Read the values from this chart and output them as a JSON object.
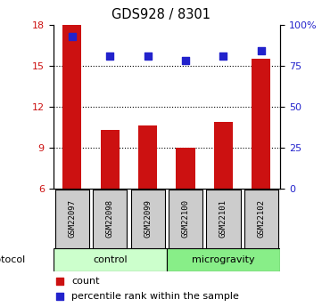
{
  "title": "GDS928 / 8301",
  "samples": [
    "GSM22097",
    "GSM22098",
    "GSM22099",
    "GSM22100",
    "GSM22101",
    "GSM22102"
  ],
  "bar_values": [
    18,
    10.3,
    10.6,
    9.0,
    10.9,
    15.5
  ],
  "percentile_values": [
    93,
    81,
    81,
    78,
    81,
    84
  ],
  "bar_bottom": 6,
  "ylim_left": [
    6,
    18
  ],
  "ylim_right": [
    0,
    100
  ],
  "yticks_left": [
    6,
    9,
    12,
    15,
    18
  ],
  "yticks_right": [
    0,
    25,
    50,
    75,
    100
  ],
  "ytick_labels_right": [
    "0",
    "25",
    "50",
    "75",
    "100%"
  ],
  "bar_color": "#cc1111",
  "dot_color": "#2222cc",
  "groups": [
    {
      "label": "control",
      "indices": [
        0,
        1,
        2
      ],
      "color": "#ccffcc"
    },
    {
      "label": "microgravity",
      "indices": [
        3,
        4,
        5
      ],
      "color": "#88ee88"
    }
  ],
  "protocol_label": "protocol",
  "legend_count_label": "count",
  "legend_pct_label": "percentile rank within the sample",
  "background_color": "#ffffff",
  "sample_box_color": "#cccccc",
  "dot_size": 38
}
